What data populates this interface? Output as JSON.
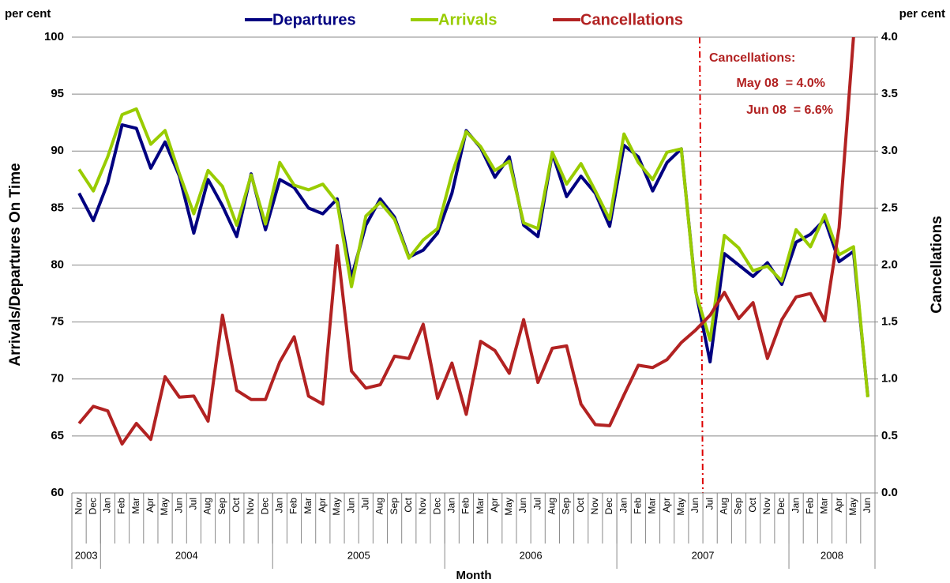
{
  "chart_data": {
    "type": "line",
    "legend": "top",
    "y_unit_left": "per cent",
    "y_unit_right": "per cent",
    "ylabel": "Arrivals/Departures On Time",
    "y2label": "Cancellations",
    "xlabel": "Month",
    "annotation": [
      "Cancellations:",
      "May 08  = 4.0%",
      "Jun 08  = 6.6%"
    ],
    "categories": [
      "Nov",
      "Dec",
      "Jan",
      "Feb",
      "Mar",
      "Apr",
      "May",
      "Jun",
      "Jul",
      "Aug",
      "Sep",
      "Oct",
      "Nov",
      "Dec",
      "Jan",
      "Feb",
      "Mar",
      "Apr",
      "May",
      "Jun",
      "Jul",
      "Aug",
      "Sep",
      "Oct",
      "Nov",
      "Dec",
      "Jan",
      "Feb",
      "Mar",
      "Apr",
      "May",
      "Jun",
      "Jul",
      "Aug",
      "Sep",
      "Oct",
      "Nov",
      "Dec",
      "Jan",
      "Feb",
      "Mar",
      "Apr",
      "May",
      "Jun",
      "Jul",
      "Aug",
      "Sep",
      "Oct",
      "Nov",
      "Dec",
      "Jan",
      "Feb",
      "Mar",
      "Apr",
      "May",
      "Jun"
    ],
    "year_groups": [
      {
        "label": "2003",
        "span": 2
      },
      {
        "label": "2004",
        "span": 12
      },
      {
        "label": "2005",
        "span": 12
      },
      {
        "label": "2006",
        "span": 12
      },
      {
        "label": "2007",
        "span": 12
      },
      {
        "label": "2008",
        "span": 6
      }
    ],
    "ylim": [
      60,
      100
    ],
    "yticks": [
      60,
      65,
      70,
      75,
      80,
      85,
      90,
      95,
      100
    ],
    "y2lim": [
      0,
      4
    ],
    "y2ticks": [
      {
        "value": 0,
        "label": "0.0"
      },
      {
        "value": 0.5,
        "label": "0.5"
      },
      {
        "value": 1,
        "label": "1.0"
      },
      {
        "value": 1.5,
        "label": "1.5"
      },
      {
        "value": 2,
        "label": "2.0"
      },
      {
        "value": 2.5,
        "label": "2.5"
      },
      {
        "value": 3,
        "label": "3.0"
      },
      {
        "value": 3.5,
        "label": "3.5"
      },
      {
        "value": 4,
        "label": "4.0"
      }
    ],
    "grid": true,
    "series": [
      {
        "name": "Departures",
        "color": "#000080",
        "axis": "y",
        "values": [
          86.3,
          83.9,
          87.2,
          92.3,
          92.0,
          88.5,
          90.8,
          87.8,
          82.8,
          87.5,
          85.2,
          82.5,
          88.0,
          83.1,
          87.5,
          86.8,
          85.0,
          84.5,
          85.8,
          78.9,
          83.5,
          85.8,
          84.2,
          80.7,
          81.3,
          82.8,
          86.3,
          91.8,
          90.3,
          87.7,
          89.5,
          83.5,
          82.5,
          89.8,
          86.0,
          87.8,
          86.3,
          83.4,
          90.5,
          89.5,
          86.5,
          89.0,
          90.2,
          77.7,
          71.5,
          81.0,
          80.0,
          79.0,
          80.2,
          78.3,
          82.0,
          82.7,
          84.0,
          80.3,
          81.2,
          68.5
        ]
      },
      {
        "name": "Arrivals",
        "color": "#99cc00",
        "axis": "y",
        "values": [
          88.4,
          86.5,
          89.5,
          93.2,
          93.7,
          90.6,
          91.8,
          88.0,
          84.5,
          88.3,
          86.9,
          83.5,
          87.9,
          83.6,
          89.0,
          87.0,
          86.6,
          87.1,
          85.5,
          78.1,
          84.3,
          85.5,
          84.0,
          80.6,
          82.2,
          83.2,
          88.0,
          91.7,
          90.4,
          88.3,
          89.1,
          83.7,
          83.2,
          89.9,
          87.1,
          88.9,
          86.5,
          84.0,
          91.5,
          89.0,
          87.5,
          89.9,
          90.2,
          77.6,
          73.4,
          82.6,
          81.5,
          79.5,
          79.9,
          78.6,
          83.1,
          81.6,
          84.4,
          80.9,
          81.6,
          68.4
        ]
      },
      {
        "name": "Cancellations",
        "color": "#b22222",
        "axis": "y2",
        "values": [
          0.61,
          0.76,
          0.72,
          0.43,
          0.61,
          0.47,
          1.02,
          0.84,
          0.85,
          0.63,
          1.56,
          0.9,
          0.82,
          0.82,
          1.15,
          1.37,
          0.85,
          0.78,
          2.17,
          1.07,
          0.92,
          0.95,
          1.2,
          1.18,
          1.48,
          0.83,
          1.14,
          0.69,
          1.33,
          1.25,
          1.05,
          1.52,
          0.97,
          1.27,
          1.29,
          0.78,
          0.6,
          0.59,
          0.86,
          1.12,
          1.1,
          1.17,
          1.32,
          1.43,
          1.56,
          1.76,
          1.53,
          1.67,
          1.18,
          1.52,
          1.72,
          1.75,
          1.51,
          2.33,
          4.0,
          6.6
        ]
      }
    ]
  }
}
